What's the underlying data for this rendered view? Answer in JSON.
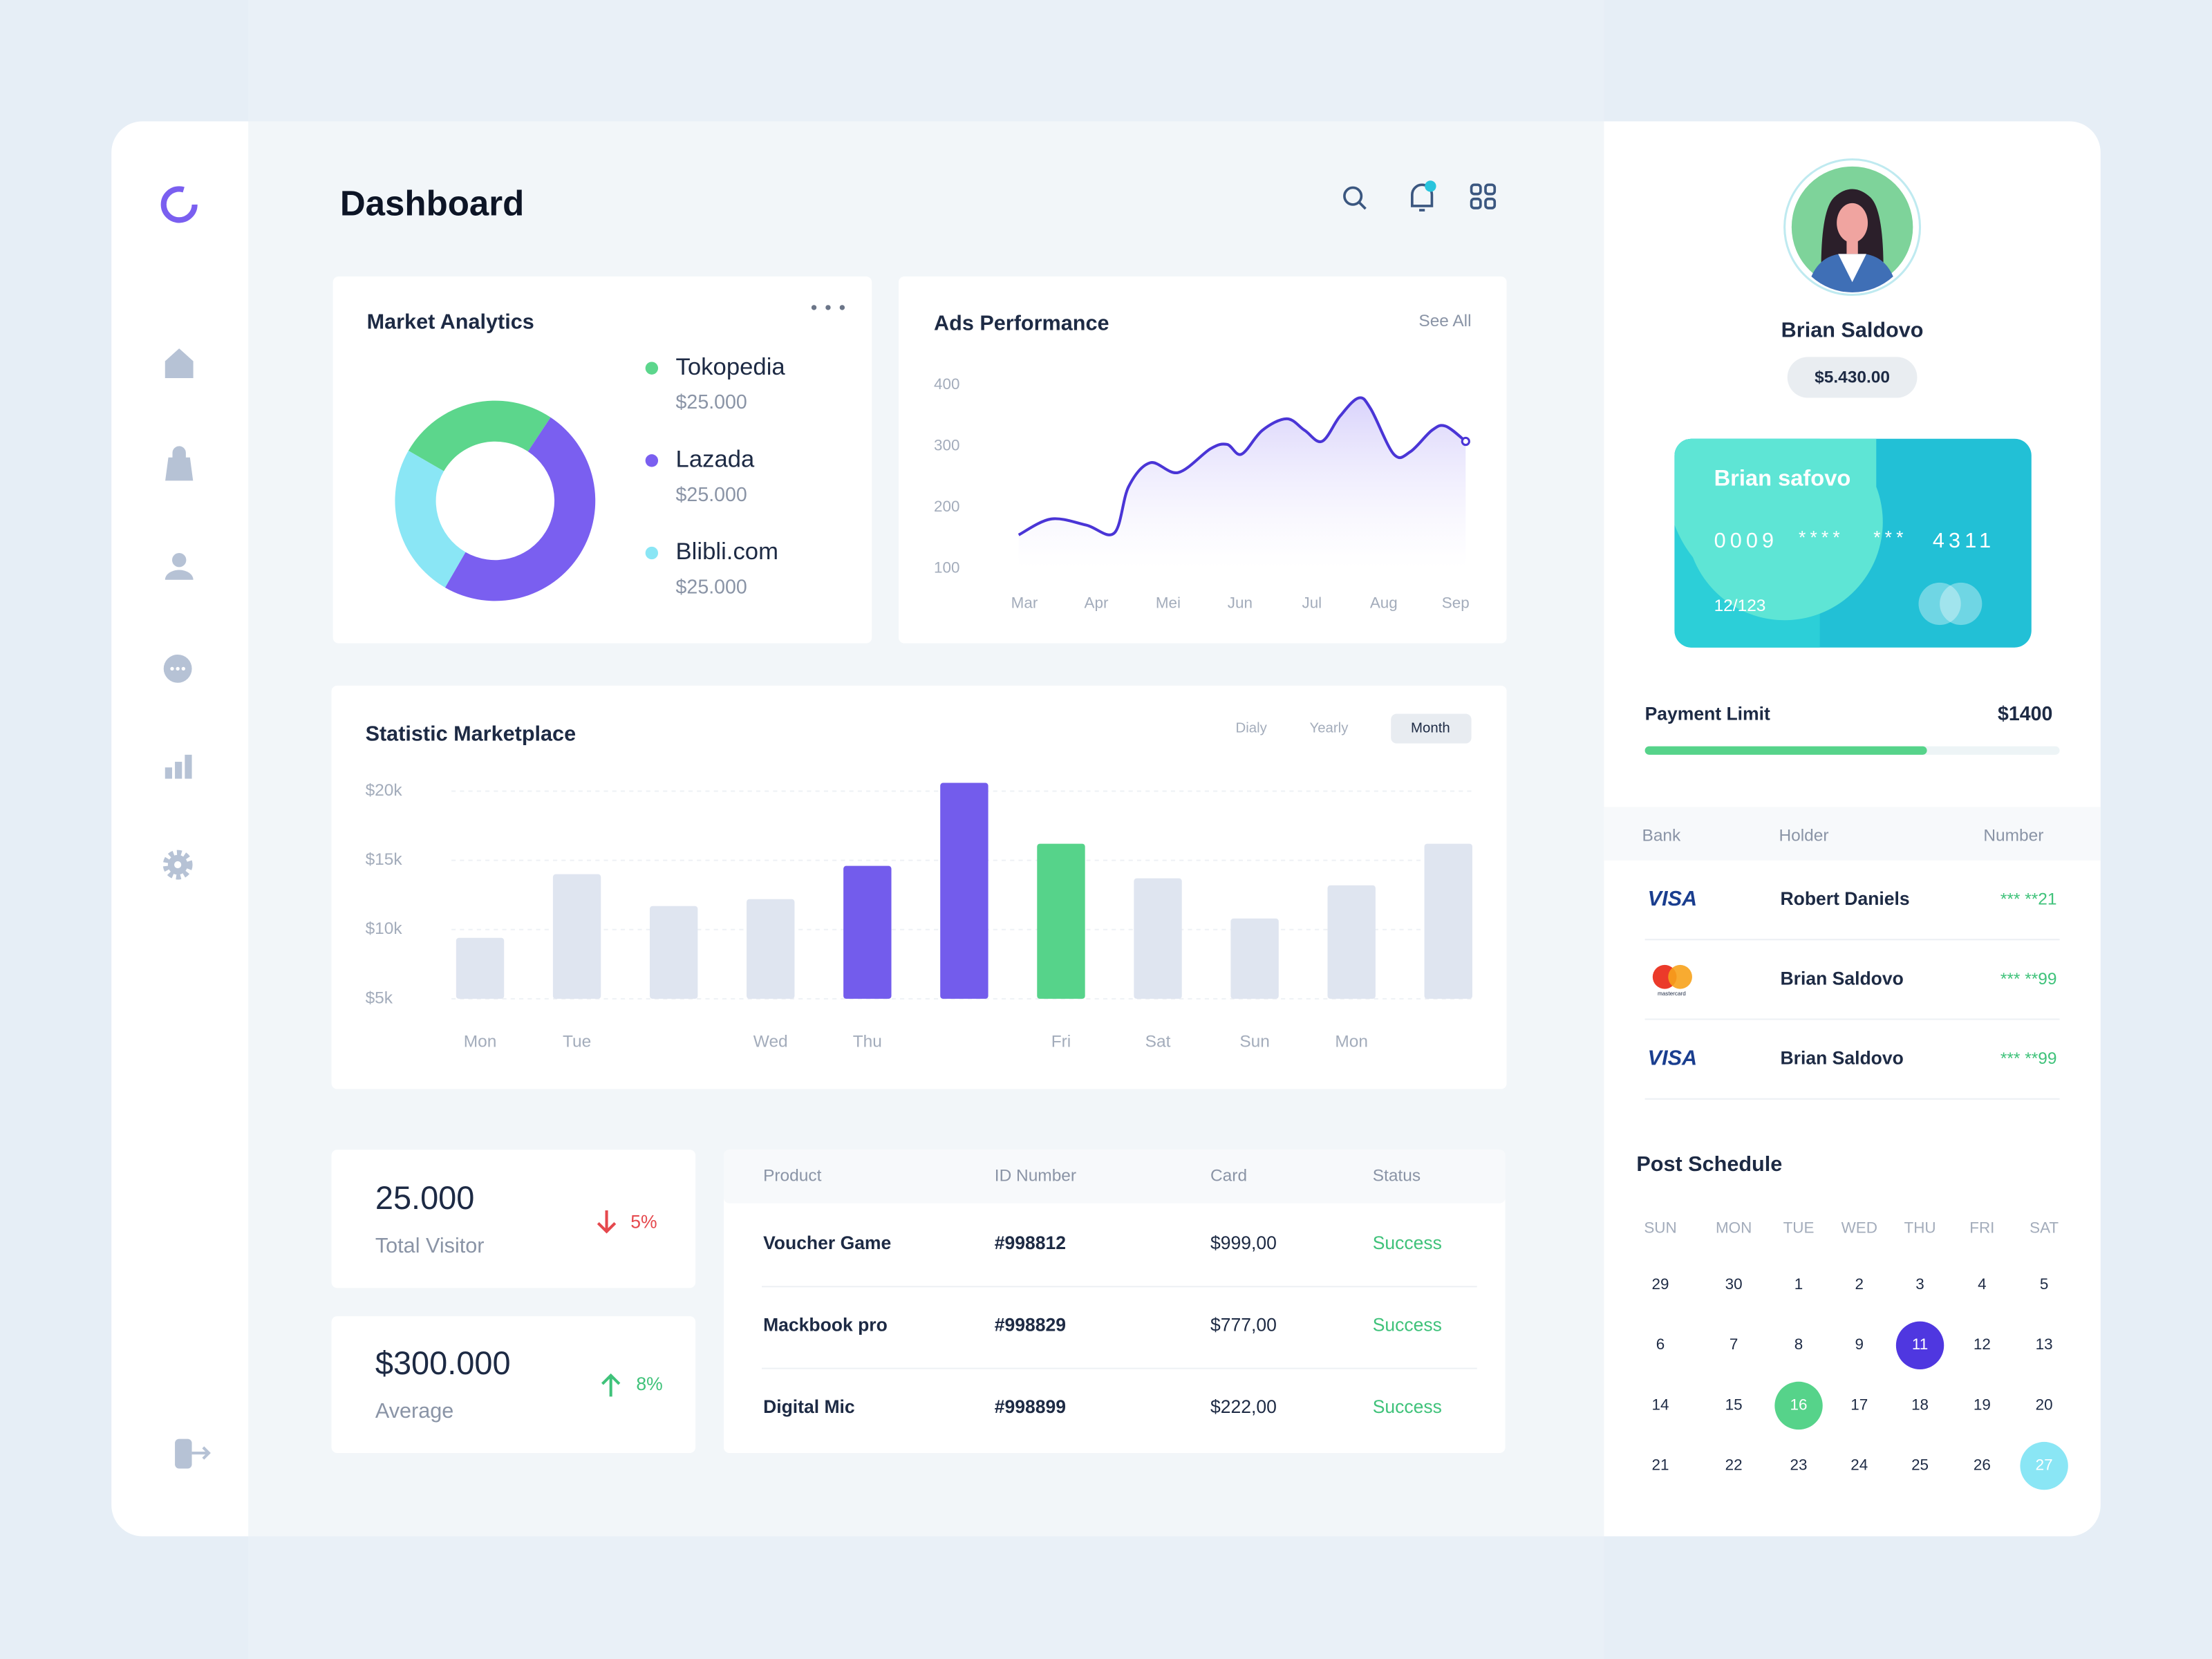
{
  "header": {
    "title": "Dashboard"
  },
  "chart_data": [
    {
      "type": "donut",
      "title": "Market Analytics",
      "categories": [
        "Tokopedia",
        "Lazada",
        "Blibli.com"
      ],
      "amounts": [
        "$25.000",
        "$25.000",
        "$25.000"
      ],
      "values": [
        26,
        49,
        25
      ],
      "colors": [
        "#5cd68c",
        "#7a5ff0",
        "#8ae6f5"
      ]
    },
    {
      "type": "line",
      "title": "Ads Performance",
      "link": "See All",
      "x": [
        -0.08,
        0.37,
        0.86,
        1.25,
        1.45,
        1.75,
        2.14,
        2.59,
        2.82,
        3.02,
        3.31,
        3.65,
        3.9,
        4.14,
        4.39,
        4.65,
        4.82,
        5.14,
        5.37,
        5.67,
        5.86,
        6.14
      ],
      "values": [
        155,
        181,
        171,
        158,
        234,
        273,
        257,
        296,
        303,
        287,
        326,
        345,
        326,
        308,
        349,
        379,
        361,
        287,
        291,
        326,
        333,
        308
      ],
      "xlim": [
        -0.2,
        6.2
      ],
      "xticks": [
        {
          "value": 0,
          "label": "Mar"
        },
        {
          "value": 1,
          "label": "Apr"
        },
        {
          "value": 2,
          "label": "Mei"
        },
        {
          "value": 3,
          "label": "Jun"
        },
        {
          "value": 4,
          "label": "Jul"
        },
        {
          "value": 5,
          "label": "Aug"
        },
        {
          "value": 6,
          "label": "Sep"
        }
      ],
      "ylim": [
        100,
        400
      ],
      "yticks": [
        100,
        200,
        300,
        400
      ],
      "color": "#4a35d6"
    },
    {
      "type": "bar",
      "title": "Statistic Marketplace",
      "periods": [
        "Dialy",
        "Yearly",
        "Month"
      ],
      "selected": [
        false,
        false,
        true
      ],
      "categories": [
        "Mon",
        "Tue",
        null,
        "Wed",
        "Thu",
        null,
        "Fri",
        "Sat",
        "Sun",
        "Mon",
        null
      ],
      "values": [
        9400,
        14000,
        11700,
        12200,
        14600,
        20600,
        16200,
        13700,
        10800,
        13200,
        16200
      ],
      "colors": [
        "#dfe5f0",
        "#dfe5f0",
        "#dfe5f0",
        "#dfe5f0",
        "#735cec",
        "#735cec",
        "#56d38a",
        "#dfe5f0",
        "#dfe5f0",
        "#dfe5f0",
        "#dfe5f0"
      ],
      "ylim": [
        5000,
        21000
      ],
      "yticks": [
        {
          "value": 5000,
          "label": "$5k"
        },
        {
          "value": 10000,
          "label": "$10k"
        },
        {
          "value": 15000,
          "label": "$15k"
        },
        {
          "value": 20000,
          "label": "$20k"
        }
      ],
      "grid": true
    }
  ],
  "stats": [
    {
      "value": "25.000",
      "label": "Total Visitor",
      "change": "5%",
      "direction": "down",
      "color": "#e5484d"
    },
    {
      "value": "$300.000",
      "label": "Average",
      "change": "8%",
      "direction": "up",
      "color": "#3fc27a"
    }
  ],
  "transactions": {
    "columns": [
      "Product",
      "ID Number",
      "Card",
      "Status"
    ],
    "rows": [
      [
        "Voucher Game",
        "#998812",
        "$999,00",
        "Success"
      ],
      [
        "Mackbook pro",
        "#998829",
        "$777,00",
        "Success"
      ],
      [
        "Digital Mic",
        "#998899",
        "$222,00",
        "Success"
      ]
    ]
  },
  "profile": {
    "name": "Brian Saldovo",
    "balance": "$5.430.00"
  },
  "card": {
    "holder": "Brian safovo",
    "number": [
      "0009",
      "****",
      "***",
      "4311"
    ],
    "expiry": "12/123"
  },
  "payment_limit": {
    "label": "Payment Limit",
    "amount": "$1400",
    "progress": 68
  },
  "banks": {
    "columns": [
      "Bank",
      "Holder",
      "Number"
    ],
    "rows": [
      [
        "VISA",
        "Robert Daniels",
        "*** **21"
      ],
      [
        "mastercard",
        "Brian Saldovo",
        "*** **99"
      ],
      [
        "VISA",
        "Brian Saldovo",
        "*** **99"
      ]
    ]
  },
  "schedule": {
    "title": "Post Schedule",
    "weekdays": [
      "SUN",
      "MON",
      "TUE",
      "WED",
      "THU",
      "FRI",
      "SAT"
    ],
    "weeks": [
      [
        29,
        30,
        1,
        2,
        3,
        4,
        5
      ],
      [
        6,
        7,
        8,
        9,
        11,
        12,
        13
      ],
      [
        14,
        15,
        16,
        17,
        18,
        19,
        20
      ],
      [
        21,
        22,
        23,
        24,
        25,
        26,
        27
      ]
    ],
    "highlights": [
      {
        "date": "11",
        "color": "#4f37e0"
      },
      {
        "date": "16",
        "color": "#56d38a"
      },
      {
        "date": "27",
        "color": "#8ae6f5"
      }
    ]
  }
}
